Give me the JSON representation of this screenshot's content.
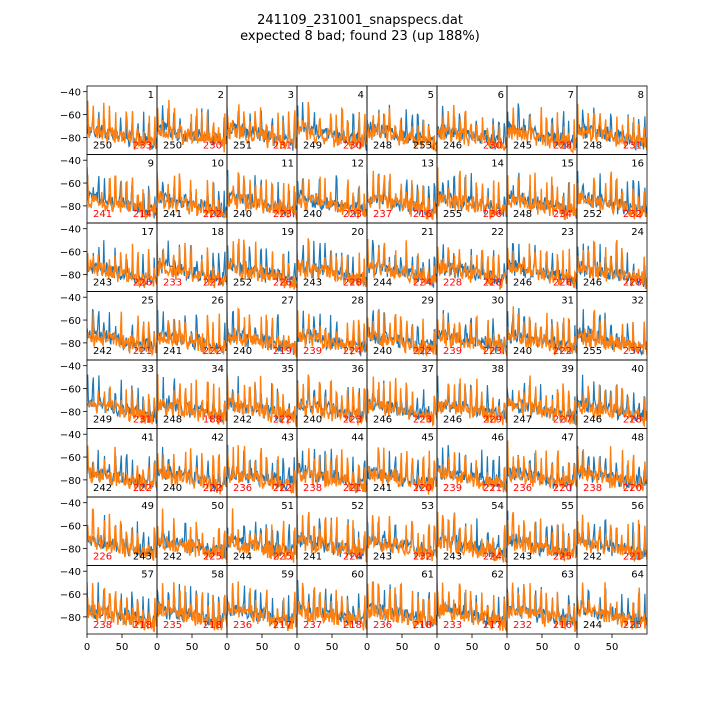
{
  "figure": {
    "title_line1": "241109_231001_snapspecs.dat",
    "title_line2": "expected 8 bad; found 23 (up 188%)"
  },
  "chart_data": {
    "type": "line",
    "layout": "8x8 grid of small-multiple spectra panels",
    "colors": {
      "series_a": "#1f77b4",
      "series_b": "#ff7f0e",
      "bad_label": "#ff0000",
      "ok_label": "#000000"
    },
    "xlim": [
      0,
      100
    ],
    "ylim": [
      -95,
      -35
    ],
    "y_ticks": [
      -40,
      -60,
      -80
    ],
    "x_ticks": [
      0,
      50
    ],
    "grid": false,
    "panels": [
      {
        "id": "1",
        "left": "250",
        "right": "233",
        "left_bad": false,
        "right_bad": true
      },
      {
        "id": "2",
        "left": "250",
        "right": "230",
        "left_bad": false,
        "right_bad": true
      },
      {
        "id": "3",
        "left": "251",
        "right": "231",
        "left_bad": false,
        "right_bad": true
      },
      {
        "id": "4",
        "left": "249",
        "right": "230",
        "left_bad": false,
        "right_bad": true
      },
      {
        "id": "5",
        "left": "248",
        "right": "253",
        "left_bad": false,
        "right_bad": false
      },
      {
        "id": "6",
        "left": "246",
        "right": "230",
        "left_bad": false,
        "right_bad": true
      },
      {
        "id": "7",
        "left": "245",
        "right": "228",
        "left_bad": false,
        "right_bad": true
      },
      {
        "id": "8",
        "left": "248",
        "right": "231",
        "left_bad": false,
        "right_bad": true
      },
      {
        "id": "9",
        "left": "241",
        "right": "214",
        "left_bad": true,
        "right_bad": true
      },
      {
        "id": "10",
        "left": "241",
        "right": "222",
        "left_bad": false,
        "right_bad": true
      },
      {
        "id": "11",
        "left": "240",
        "right": "223",
        "left_bad": false,
        "right_bad": true
      },
      {
        "id": "12",
        "left": "240",
        "right": "223",
        "left_bad": false,
        "right_bad": true
      },
      {
        "id": "13",
        "left": "237",
        "right": "216",
        "left_bad": true,
        "right_bad": true
      },
      {
        "id": "14",
        "left": "255",
        "right": "236",
        "left_bad": false,
        "right_bad": true
      },
      {
        "id": "15",
        "left": "248",
        "right": "234",
        "left_bad": false,
        "right_bad": true
      },
      {
        "id": "16",
        "left": "252",
        "right": "232",
        "left_bad": false,
        "right_bad": true
      },
      {
        "id": "17",
        "left": "243",
        "right": "226",
        "left_bad": false,
        "right_bad": true
      },
      {
        "id": "18",
        "left": "233",
        "right": "227",
        "left_bad": true,
        "right_bad": true
      },
      {
        "id": "19",
        "left": "252",
        "right": "226",
        "left_bad": false,
        "right_bad": true
      },
      {
        "id": "20",
        "left": "243",
        "right": "228",
        "left_bad": false,
        "right_bad": true
      },
      {
        "id": "21",
        "left": "244",
        "right": "224",
        "left_bad": false,
        "right_bad": true
      },
      {
        "id": "22",
        "left": "228",
        "right": "228",
        "left_bad": true,
        "right_bad": true
      },
      {
        "id": "23",
        "left": "246",
        "right": "226",
        "left_bad": false,
        "right_bad": true
      },
      {
        "id": "24",
        "left": "246",
        "right": "228",
        "left_bad": false,
        "right_bad": true
      },
      {
        "id": "25",
        "left": "242",
        "right": "221",
        "left_bad": false,
        "right_bad": true
      },
      {
        "id": "26",
        "left": "241",
        "right": "222",
        "left_bad": false,
        "right_bad": true
      },
      {
        "id": "27",
        "left": "240",
        "right": "219",
        "left_bad": false,
        "right_bad": true
      },
      {
        "id": "28",
        "left": "239",
        "right": "224",
        "left_bad": true,
        "right_bad": true
      },
      {
        "id": "29",
        "left": "240",
        "right": "222",
        "left_bad": false,
        "right_bad": true
      },
      {
        "id": "30",
        "left": "239",
        "right": "223",
        "left_bad": true,
        "right_bad": true
      },
      {
        "id": "31",
        "left": "240",
        "right": "222",
        "left_bad": false,
        "right_bad": true
      },
      {
        "id": "32",
        "left": "255",
        "right": "237",
        "left_bad": false,
        "right_bad": true
      },
      {
        "id": "33",
        "left": "249",
        "right": "231",
        "left_bad": false,
        "right_bad": true
      },
      {
        "id": "34",
        "left": "248",
        "right": "188",
        "left_bad": false,
        "right_bad": true
      },
      {
        "id": "35",
        "left": "242",
        "right": "222",
        "left_bad": false,
        "right_bad": true
      },
      {
        "id": "36",
        "left": "240",
        "right": "223",
        "left_bad": false,
        "right_bad": true
      },
      {
        "id": "37",
        "left": "246",
        "right": "223",
        "left_bad": false,
        "right_bad": true
      },
      {
        "id": "38",
        "left": "246",
        "right": "229",
        "left_bad": false,
        "right_bad": true
      },
      {
        "id": "39",
        "left": "247",
        "right": "227",
        "left_bad": false,
        "right_bad": true
      },
      {
        "id": "40",
        "left": "246",
        "right": "228",
        "left_bad": false,
        "right_bad": true
      },
      {
        "id": "41",
        "left": "242",
        "right": "222",
        "left_bad": false,
        "right_bad": true
      },
      {
        "id": "42",
        "left": "240",
        "right": "222",
        "left_bad": false,
        "right_bad": true
      },
      {
        "id": "43",
        "left": "236",
        "right": "222",
        "left_bad": true,
        "right_bad": true
      },
      {
        "id": "44",
        "left": "238",
        "right": "221",
        "left_bad": true,
        "right_bad": true
      },
      {
        "id": "45",
        "left": "241",
        "right": "220",
        "left_bad": false,
        "right_bad": true
      },
      {
        "id": "46",
        "left": "239",
        "right": "221",
        "left_bad": true,
        "right_bad": true
      },
      {
        "id": "47",
        "left": "236",
        "right": "220",
        "left_bad": true,
        "right_bad": true
      },
      {
        "id": "48",
        "left": "238",
        "right": "220",
        "left_bad": true,
        "right_bad": true
      },
      {
        "id": "49",
        "left": "226",
        "right": "243",
        "left_bad": true,
        "right_bad": false
      },
      {
        "id": "50",
        "left": "242",
        "right": "225",
        "left_bad": false,
        "right_bad": true
      },
      {
        "id": "51",
        "left": "244",
        "right": "225",
        "left_bad": false,
        "right_bad": true
      },
      {
        "id": "52",
        "left": "241",
        "right": "224",
        "left_bad": false,
        "right_bad": true
      },
      {
        "id": "53",
        "left": "243",
        "right": "232",
        "left_bad": false,
        "right_bad": true
      },
      {
        "id": "54",
        "left": "243",
        "right": "224",
        "left_bad": false,
        "right_bad": true
      },
      {
        "id": "55",
        "left": "243",
        "right": "225",
        "left_bad": false,
        "right_bad": true
      },
      {
        "id": "56",
        "left": "242",
        "right": "221",
        "left_bad": false,
        "right_bad": true
      },
      {
        "id": "57",
        "left": "238",
        "right": "218",
        "left_bad": true,
        "right_bad": true
      },
      {
        "id": "58",
        "left": "235",
        "right": "218",
        "left_bad": true,
        "right_bad": true
      },
      {
        "id": "59",
        "left": "236",
        "right": "217",
        "left_bad": true,
        "right_bad": true
      },
      {
        "id": "60",
        "left": "237",
        "right": "218",
        "left_bad": true,
        "right_bad": true
      },
      {
        "id": "61",
        "left": "236",
        "right": "218",
        "left_bad": true,
        "right_bad": true
      },
      {
        "id": "62",
        "left": "233",
        "right": "217",
        "left_bad": true,
        "right_bad": true
      },
      {
        "id": "63",
        "left": "232",
        "right": "216",
        "left_bad": true,
        "right_bad": true
      },
      {
        "id": "64",
        "left": "244",
        "right": "225",
        "left_bad": false,
        "right_bad": true
      }
    ]
  }
}
